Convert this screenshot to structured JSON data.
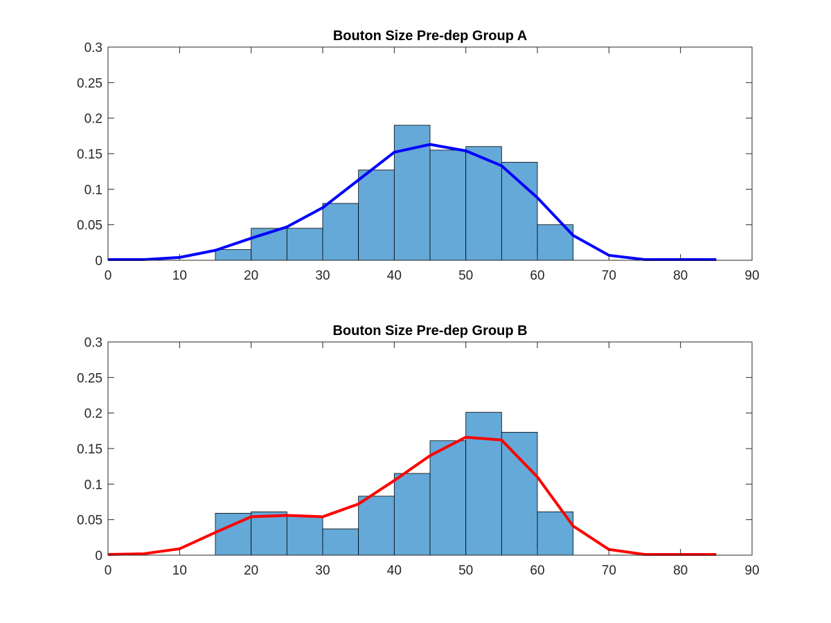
{
  "figure": {
    "background": "#ffffff"
  },
  "chart_data": [
    {
      "type": "bar",
      "subtype": "histogram with fitted line",
      "title": "Bouton Size Pre-dep Group A",
      "xlim": [
        0,
        90
      ],
      "ylim": [
        0,
        0.3
      ],
      "xticks": [
        "0",
        "10",
        "20",
        "30",
        "40",
        "50",
        "60",
        "70",
        "80",
        "90"
      ],
      "yticks": [
        "0",
        "0.05",
        "0.1",
        "0.15",
        "0.2",
        "0.25",
        "0.3"
      ],
      "bar_color": "#64a9d8",
      "bar_edge_color": "#000000",
      "line_color": "#0000ff",
      "grid": false,
      "bins": [
        {
          "x0": 15,
          "x1": 20,
          "value": 0.015
        },
        {
          "x0": 20,
          "x1": 25,
          "value": 0.045
        },
        {
          "x0": 25,
          "x1": 30,
          "value": 0.045
        },
        {
          "x0": 30,
          "x1": 35,
          "value": 0.08
        },
        {
          "x0": 35,
          "x1": 40,
          "value": 0.127
        },
        {
          "x0": 40,
          "x1": 45,
          "value": 0.19
        },
        {
          "x0": 45,
          "x1": 50,
          "value": 0.155
        },
        {
          "x0": 50,
          "x1": 55,
          "value": 0.16
        },
        {
          "x0": 55,
          "x1": 60,
          "value": 0.138
        },
        {
          "x0": 60,
          "x1": 65,
          "value": 0.05
        }
      ],
      "line": {
        "x": [
          0,
          5,
          10,
          15,
          20,
          25,
          30,
          35,
          40,
          45,
          50,
          55,
          60,
          65,
          70,
          75,
          80,
          85
        ],
        "y": [
          0.001,
          0.001,
          0.004,
          0.014,
          0.031,
          0.047,
          0.074,
          0.113,
          0.152,
          0.163,
          0.154,
          0.133,
          0.088,
          0.035,
          0.007,
          0.001,
          0.001,
          0.001
        ]
      }
    },
    {
      "type": "bar",
      "subtype": "histogram with fitted line",
      "title": "Bouton Size Pre-dep Group B",
      "xlim": [
        0,
        90
      ],
      "ylim": [
        0,
        0.3
      ],
      "xticks": [
        "0",
        "10",
        "20",
        "30",
        "40",
        "50",
        "60",
        "70",
        "80",
        "90"
      ],
      "yticks": [
        "0",
        "0.05",
        "0.1",
        "0.15",
        "0.2",
        "0.25",
        "0.3"
      ],
      "bar_color": "#64a9d8",
      "bar_edge_color": "#000000",
      "line_color": "#ff0000",
      "grid": false,
      "bins": [
        {
          "x0": 15,
          "x1": 20,
          "value": 0.059
        },
        {
          "x0": 20,
          "x1": 25,
          "value": 0.061
        },
        {
          "x0": 25,
          "x1": 30,
          "value": 0.055
        },
        {
          "x0": 30,
          "x1": 35,
          "value": 0.037
        },
        {
          "x0": 35,
          "x1": 40,
          "value": 0.083
        },
        {
          "x0": 40,
          "x1": 45,
          "value": 0.115
        },
        {
          "x0": 45,
          "x1": 50,
          "value": 0.161
        },
        {
          "x0": 50,
          "x1": 55,
          "value": 0.201
        },
        {
          "x0": 55,
          "x1": 60,
          "value": 0.173
        },
        {
          "x0": 60,
          "x1": 65,
          "value": 0.061
        }
      ],
      "line": {
        "x": [
          0,
          5,
          10,
          15,
          20,
          25,
          30,
          35,
          40,
          45,
          50,
          55,
          60,
          65,
          70,
          75,
          80,
          85
        ],
        "y": [
          0.001,
          0.002,
          0.009,
          0.032,
          0.054,
          0.056,
          0.054,
          0.072,
          0.105,
          0.14,
          0.166,
          0.162,
          0.11,
          0.041,
          0.008,
          0.001,
          0.001,
          0.001
        ]
      }
    }
  ]
}
